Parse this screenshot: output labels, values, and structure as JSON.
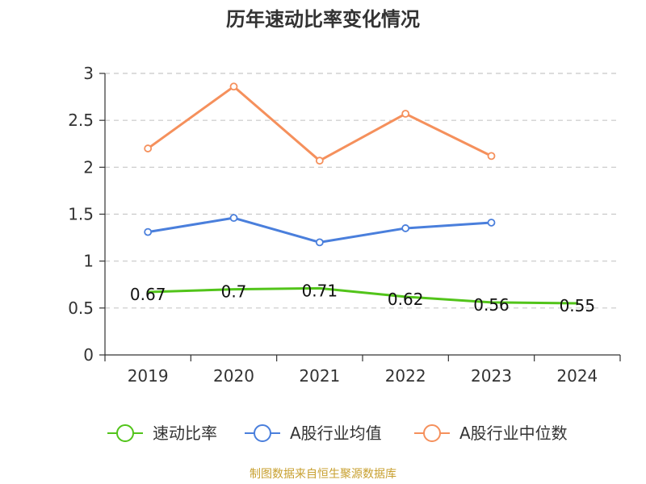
{
  "chart_data": {
    "type": "line",
    "title": "历年速动比率变化情况",
    "categories": [
      "2019",
      "2020",
      "2021",
      "2022",
      "2023",
      "2024"
    ],
    "ylim": [
      0,
      3
    ],
    "yticks": [
      0,
      0.5,
      1,
      1.5,
      2,
      2.5,
      3
    ],
    "ytick_labels": [
      "0",
      "0.5",
      "1",
      "1.5",
      "2",
      "2.5",
      "3"
    ],
    "grid": true,
    "legend_position": "bottom",
    "series": [
      {
        "name": "速动比率",
        "color": "#52c41a",
        "values": [
          0.67,
          0.7,
          0.71,
          0.62,
          0.56,
          0.55
        ],
        "labels": [
          "0.67",
          "0.7",
          "0.71",
          "0.62",
          "0.56",
          "0.55"
        ],
        "markers": false
      },
      {
        "name": "A股行业均值",
        "color": "#4a7fdc",
        "values": [
          1.31,
          1.46,
          1.2,
          1.35,
          1.41,
          null
        ],
        "markers": true
      },
      {
        "name": "A股行业中位数",
        "color": "#f5905c",
        "values": [
          2.2,
          2.86,
          2.07,
          2.57,
          2.12,
          null
        ],
        "markers": true
      }
    ]
  },
  "footer": "制图数据来自恒生聚源数据库"
}
